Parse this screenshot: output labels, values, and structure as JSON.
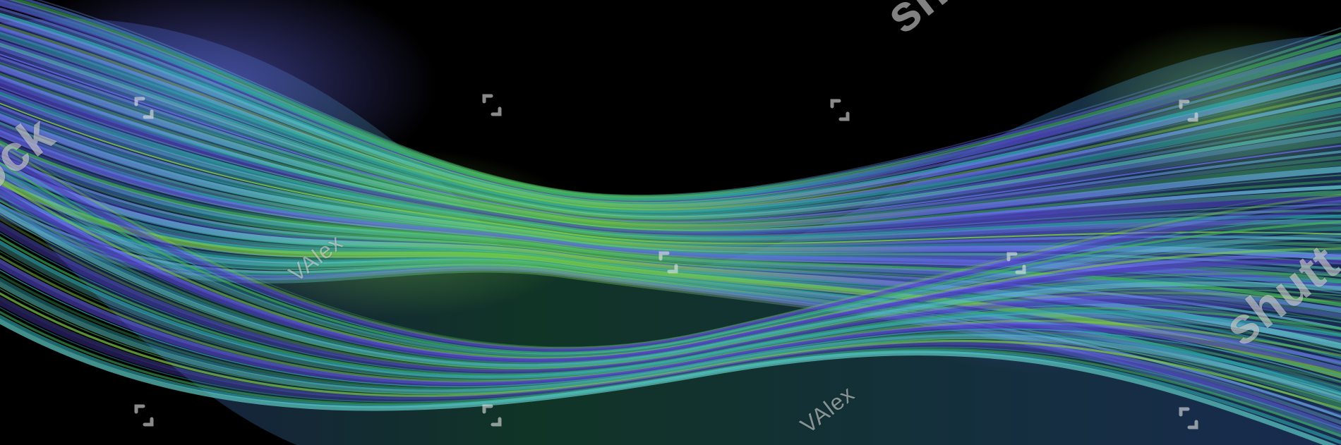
{
  "image": {
    "subject": "",
    "palette": {
      "background": "#000000",
      "deep_violet": "#4b3fb8",
      "periwinkle": "#6a6cf0",
      "teal": "#2fa3a8",
      "aqua": "#5cc6c0",
      "green": "#3fb35a",
      "lime": "#7fcf4a",
      "dark_green": "#123a2a"
    }
  },
  "watermark": {
    "brand_text_a": "shutt",
    "brand_text_b": "shutt",
    "brand_text_c": "stock",
    "author_text_a": "VAlex",
    "author_text_b": "VAlex",
    "mark_icon": "shutterstock-mark-icon",
    "color": "#e6e6e6"
  }
}
